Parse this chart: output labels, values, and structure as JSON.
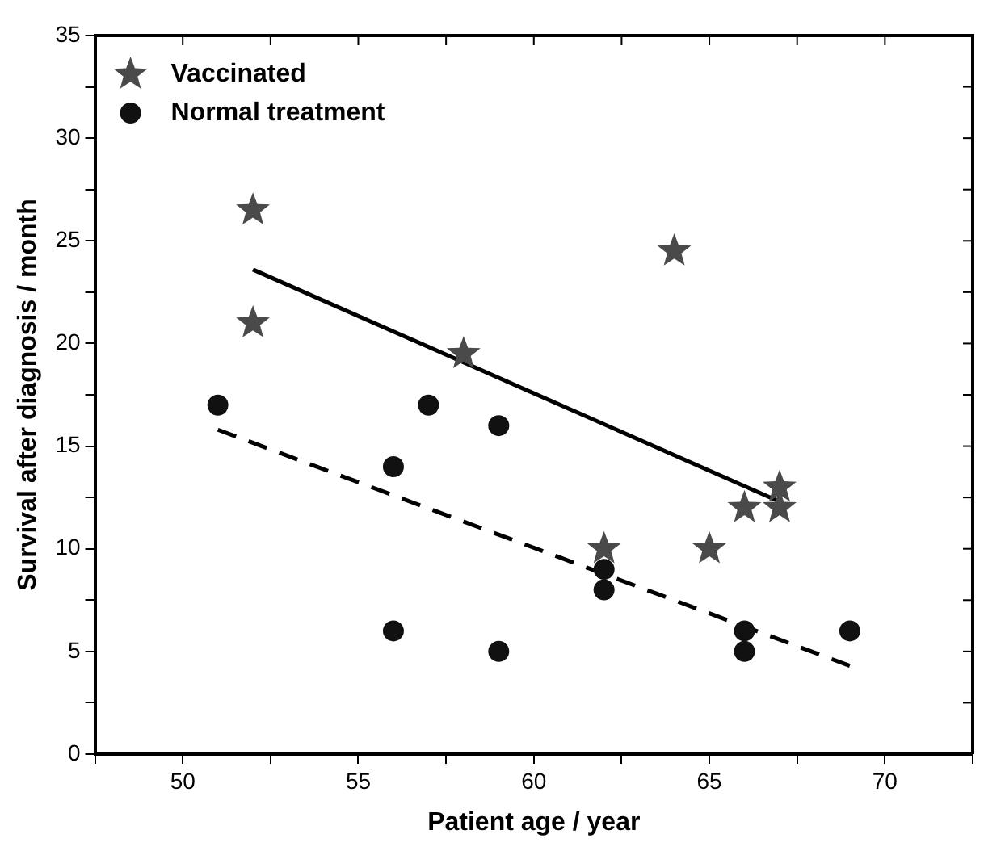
{
  "chart_data": {
    "type": "scatter",
    "xlabel": "Patient age / year",
    "ylabel": "Survival after diagnosis / month",
    "xlim": [
      47.5,
      72.5
    ],
    "xticks": [
      {
        "value": 47.5,
        "label": null
      },
      50,
      {
        "value": 52.5,
        "label": null
      },
      55,
      {
        "value": 57.5,
        "label": null
      },
      60,
      {
        "value": 62.5,
        "label": null
      },
      65,
      {
        "value": 67.5,
        "label": null
      },
      70,
      {
        "value": 72.5,
        "label": null
      }
    ],
    "ylim": [
      0,
      35
    ],
    "yticks": [
      0,
      {
        "value": 2.5,
        "label": null
      },
      5,
      {
        "value": 7.5,
        "label": null
      },
      10,
      {
        "value": 12.5,
        "label": null
      },
      15,
      {
        "value": 17.5,
        "label": null
      },
      20,
      {
        "value": 22.5,
        "label": null
      },
      25,
      {
        "value": 27.5,
        "label": null
      },
      30,
      {
        "value": 32.5,
        "label": null
      },
      35
    ],
    "grid": false,
    "legend": "top left",
    "series": [
      {
        "name": "Vaccinated",
        "color": "#4a4a4a",
        "marker": "star",
        "x": [
          52,
          52,
          58,
          64,
          62,
          65,
          66,
          67,
          67
        ],
        "values": [
          26.5,
          21,
          19.5,
          24.5,
          10,
          10,
          12,
          12,
          13
        ]
      },
      {
        "name": "Normal treatment",
        "color": "#111111",
        "marker": "circle",
        "x": [
          51,
          56,
          57,
          59,
          56,
          59,
          62,
          62,
          66,
          66,
          69
        ],
        "values": [
          17,
          14,
          17,
          16,
          6,
          5,
          9,
          8,
          6,
          5,
          6
        ]
      },
      {
        "type": "line",
        "color": "#000000",
        "line_style": "solid",
        "marker": "none",
        "x": [
          52,
          67
        ],
        "values": [
          23.6,
          12.3
        ]
      },
      {
        "type": "line",
        "color": "#000000",
        "line_style": "dashed",
        "marker": "none",
        "x": [
          51,
          69
        ],
        "values": [
          15.8,
          4.3
        ]
      }
    ]
  }
}
